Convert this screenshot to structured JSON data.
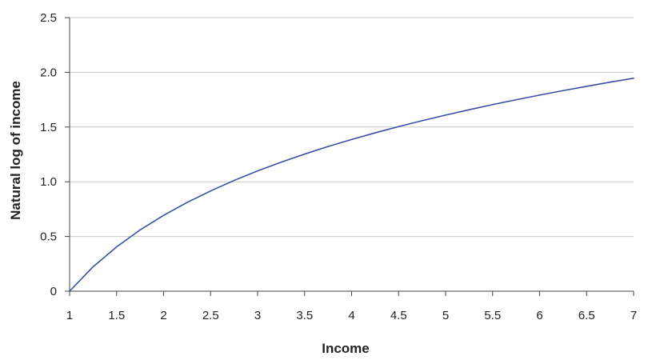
{
  "chart_data": {
    "type": "line",
    "title": "",
    "xlabel": "Income",
    "ylabel": "Natural log of income",
    "xlim": [
      1,
      7
    ],
    "ylim": [
      0,
      2.5
    ],
    "grid": "horizontal",
    "x_ticks": [
      {
        "value": 1,
        "label": "1"
      },
      {
        "value": 1.5,
        "label": "1.5"
      },
      {
        "value": 2,
        "label": "2"
      },
      {
        "value": 2.5,
        "label": "2.5"
      },
      {
        "value": 3,
        "label": "3"
      },
      {
        "value": 3.5,
        "label": "3.5"
      },
      {
        "value": 4,
        "label": "4"
      },
      {
        "value": 4.5,
        "label": "4.5"
      },
      {
        "value": 5,
        "label": "5"
      },
      {
        "value": 5.5,
        "label": "5.5"
      },
      {
        "value": 6,
        "label": "6"
      },
      {
        "value": 6.5,
        "label": "6.5"
      },
      {
        "value": 7,
        "label": "7"
      }
    ],
    "y_ticks": [
      {
        "value": 0,
        "label": "0"
      },
      {
        "value": 0.5,
        "label": "0.5"
      },
      {
        "value": 1.0,
        "label": "1.0"
      },
      {
        "value": 1.5,
        "label": "1.5"
      },
      {
        "value": 2.0,
        "label": "2.0"
      },
      {
        "value": 2.5,
        "label": "2.5"
      }
    ],
    "series": [
      {
        "color": "#3a4fa3",
        "x": [
          1,
          1.25,
          1.5,
          1.75,
          2,
          2.25,
          2.5,
          2.75,
          3,
          3.25,
          3.5,
          3.75,
          4,
          4.25,
          4.5,
          4.75,
          5,
          5.25,
          5.5,
          5.75,
          6,
          6.25,
          6.5,
          6.75,
          7
        ],
        "y": [
          0,
          0.223,
          0.405,
          0.56,
          0.693,
          0.811,
          0.916,
          1.012,
          1.099,
          1.179,
          1.253,
          1.322,
          1.386,
          1.447,
          1.504,
          1.558,
          1.609,
          1.658,
          1.705,
          1.749,
          1.792,
          1.833,
          1.872,
          1.91,
          1.946
        ]
      }
    ],
    "colors": {
      "line": "#3a4fa3",
      "grid": "#c8c8c8",
      "axis": "#444444",
      "text": "#222222"
    }
  }
}
